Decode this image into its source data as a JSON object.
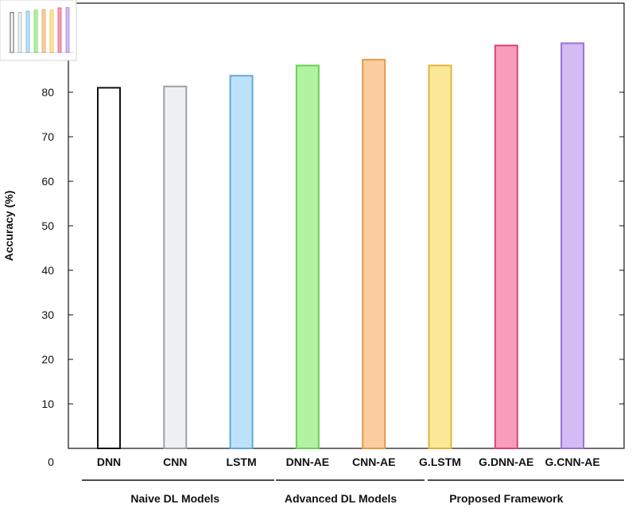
{
  "chart_data": {
    "type": "bar",
    "title": "",
    "xlabel": "",
    "ylabel": "Accuracy (%)",
    "ylim": [
      0,
      100
    ],
    "y_ticks": [
      10,
      20,
      30,
      40,
      50,
      60,
      70,
      80
    ],
    "x_origin_label": "0",
    "grid": false,
    "legend": "none",
    "categories": [
      "DNN",
      "CNN",
      "LSTM",
      "DNN-AE",
      "CNN-AE",
      "G.LSTM",
      "G.DNN-AE",
      "G.CNN-AE"
    ],
    "values": [
      81,
      81.3,
      83.7,
      86,
      87.3,
      86,
      90.5,
      91
    ],
    "colors": {
      "fill": [
        "#ffffff",
        "#eef1f1",
        "#bfe2fb",
        "#b2f3a2",
        "#fbcda0",
        "#fde89a",
        "#f79dbb",
        "#d3bcf4"
      ],
      "stroke": [
        "#111111",
        "#9aa3a3",
        "#5fa8dc",
        "#6ccf57",
        "#e39b45",
        "#dfb33a",
        "#d9466f",
        "#9b72d6"
      ]
    },
    "groups": [
      {
        "label": "Naive DL Models",
        "categories": [
          "DNN",
          "CNN",
          "LSTM"
        ]
      },
      {
        "label": "Advanced DL Models",
        "categories": [
          "DNN-AE",
          "CNN-AE"
        ]
      },
      {
        "label": "Proposed Framework",
        "categories": [
          "G.LSTM",
          "G.DNN-AE",
          "G.CNN-AE"
        ]
      }
    ]
  }
}
